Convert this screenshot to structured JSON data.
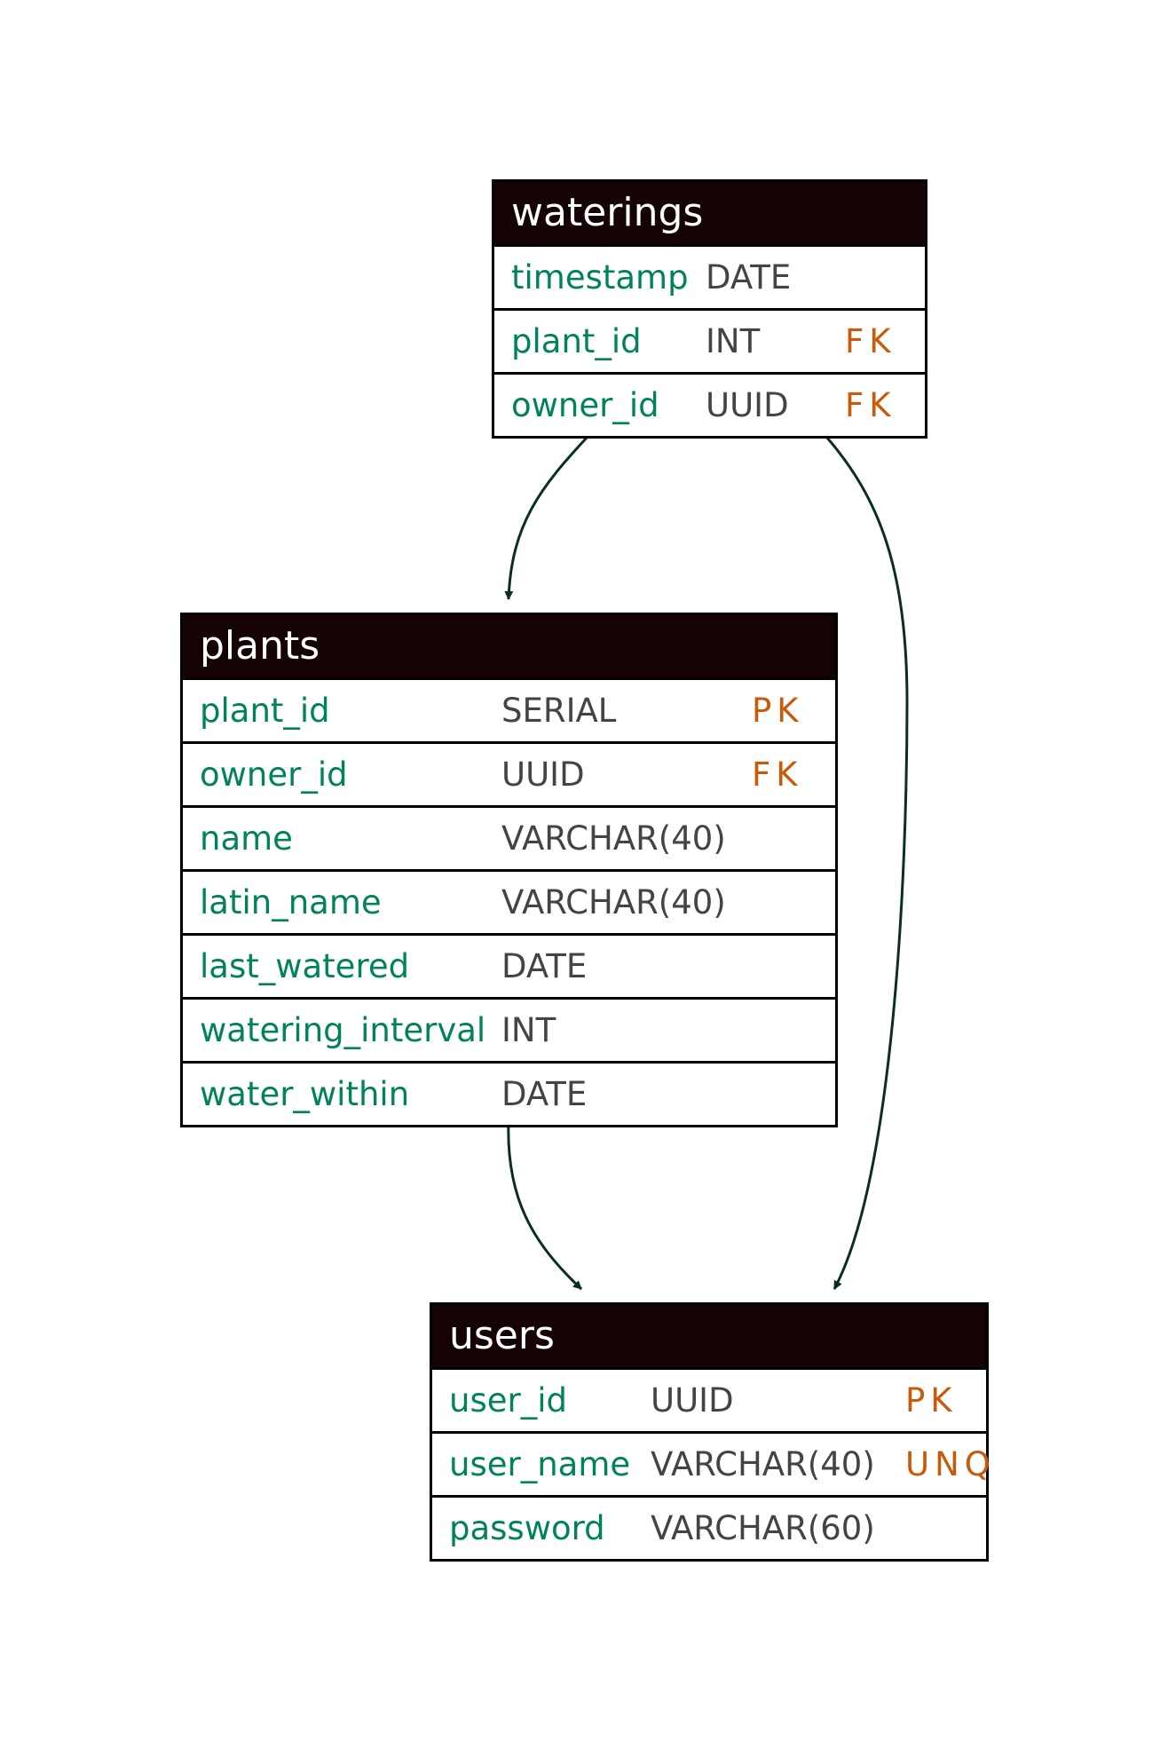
{
  "colors": {
    "header_bg": "#140205",
    "header_text": "#ffffff",
    "column_name": "#00825a",
    "column_type": "#444444",
    "key": "#c85a0a",
    "edge": "#0b2e22"
  },
  "tables": {
    "waterings": {
      "title": "waterings",
      "rows": [
        {
          "name": "timestamp",
          "type": "DATE",
          "key": ""
        },
        {
          "name": "plant_id",
          "type": "INT",
          "key": "FK"
        },
        {
          "name": "owner_id",
          "type": "UUID",
          "key": "FK"
        }
      ]
    },
    "plants": {
      "title": "plants",
      "rows": [
        {
          "name": "plant_id",
          "type": "SERIAL",
          "key": "PK"
        },
        {
          "name": "owner_id",
          "type": "UUID",
          "key": "FK"
        },
        {
          "name": "name",
          "type": "VARCHAR(40)",
          "key": ""
        },
        {
          "name": "latin_name",
          "type": "VARCHAR(40)",
          "key": ""
        },
        {
          "name": "last_watered",
          "type": "DATE",
          "key": ""
        },
        {
          "name": "watering_interval",
          "type": "INT",
          "key": ""
        },
        {
          "name": "water_within",
          "type": "DATE",
          "key": ""
        }
      ]
    },
    "users": {
      "title": "users",
      "rows": [
        {
          "name": "user_id",
          "type": "UUID",
          "key": "PK"
        },
        {
          "name": "user_name",
          "type": "VARCHAR(40)",
          "key": "UNQ"
        },
        {
          "name": "password",
          "type": "VARCHAR(60)",
          "key": ""
        }
      ]
    }
  },
  "relationships": [
    {
      "from": "waterings",
      "to": "plants"
    },
    {
      "from": "waterings",
      "to": "users"
    },
    {
      "from": "plants",
      "to": "users"
    }
  ]
}
